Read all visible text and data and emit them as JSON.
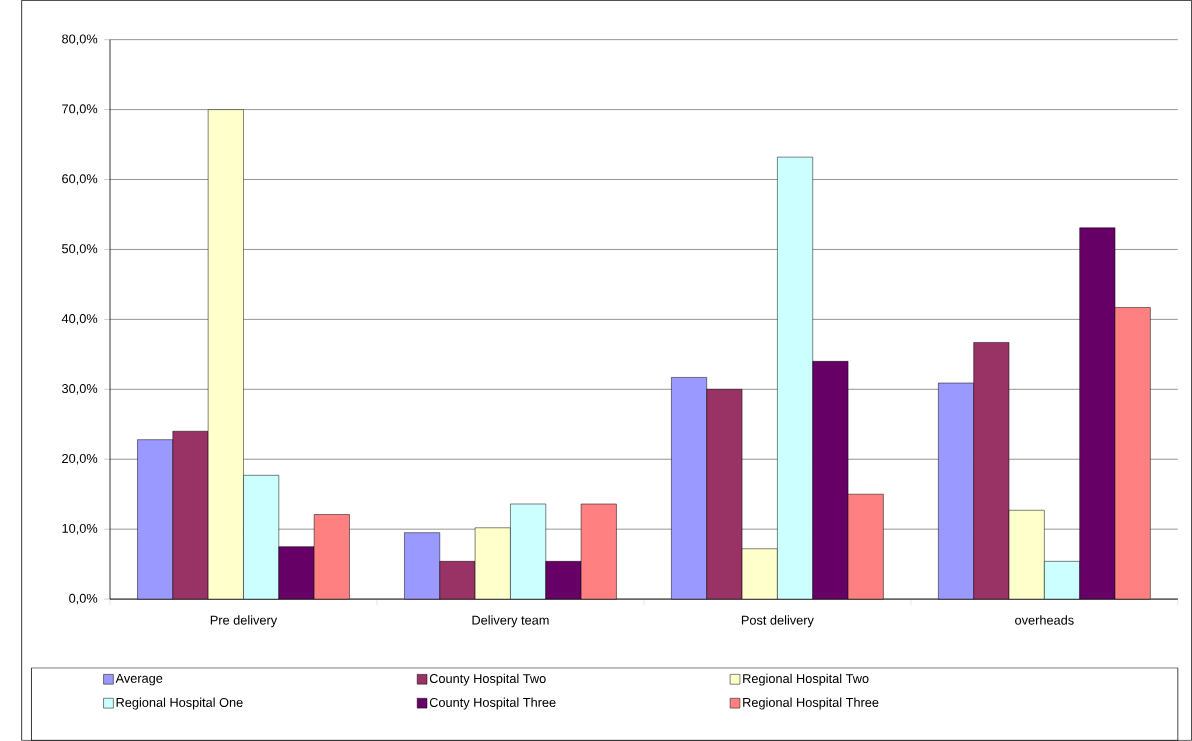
{
  "chart_data": {
    "type": "bar",
    "categories": [
      "Pre delivery",
      "Delivery team",
      "Post delivery",
      "overheads"
    ],
    "series": [
      {
        "name": "Average",
        "color": "#9999ff",
        "values": [
          22.8,
          9.5,
          31.7,
          30.9
        ]
      },
      {
        "name": "County Hospital Two",
        "color": "#993366",
        "values": [
          24.0,
          5.4,
          30.0,
          36.7
        ]
      },
      {
        "name": "Regional Hospital Two",
        "color": "#ffffcc",
        "values": [
          70.0,
          10.2,
          7.2,
          12.7
        ]
      },
      {
        "name": "Regional Hospital One",
        "color": "#ccffff",
        "values": [
          17.7,
          13.6,
          63.2,
          5.4
        ]
      },
      {
        "name": "County Hospital Three",
        "color": "#660066",
        "values": [
          7.5,
          5.4,
          34.0,
          53.1
        ]
      },
      {
        "name": "Regional Hospital Three",
        "color": "#ff8080",
        "values": [
          12.1,
          13.6,
          15.0,
          41.7
        ]
      }
    ],
    "ylim": [
      0,
      80
    ],
    "yticks": [
      {
        "value": 0,
        "label": "0,0%"
      },
      {
        "value": 10,
        "label": "10,0%"
      },
      {
        "value": 20,
        "label": "20,0%"
      },
      {
        "value": 30,
        "label": "30,0%"
      },
      {
        "value": 40,
        "label": "40,0%"
      },
      {
        "value": 50,
        "label": "50,0%"
      },
      {
        "value": 60,
        "label": "60,0%"
      },
      {
        "value": 70,
        "label": "70,0%"
      },
      {
        "value": 80,
        "label": "80,0%"
      }
    ],
    "grid": "y",
    "legend": "bottom"
  }
}
